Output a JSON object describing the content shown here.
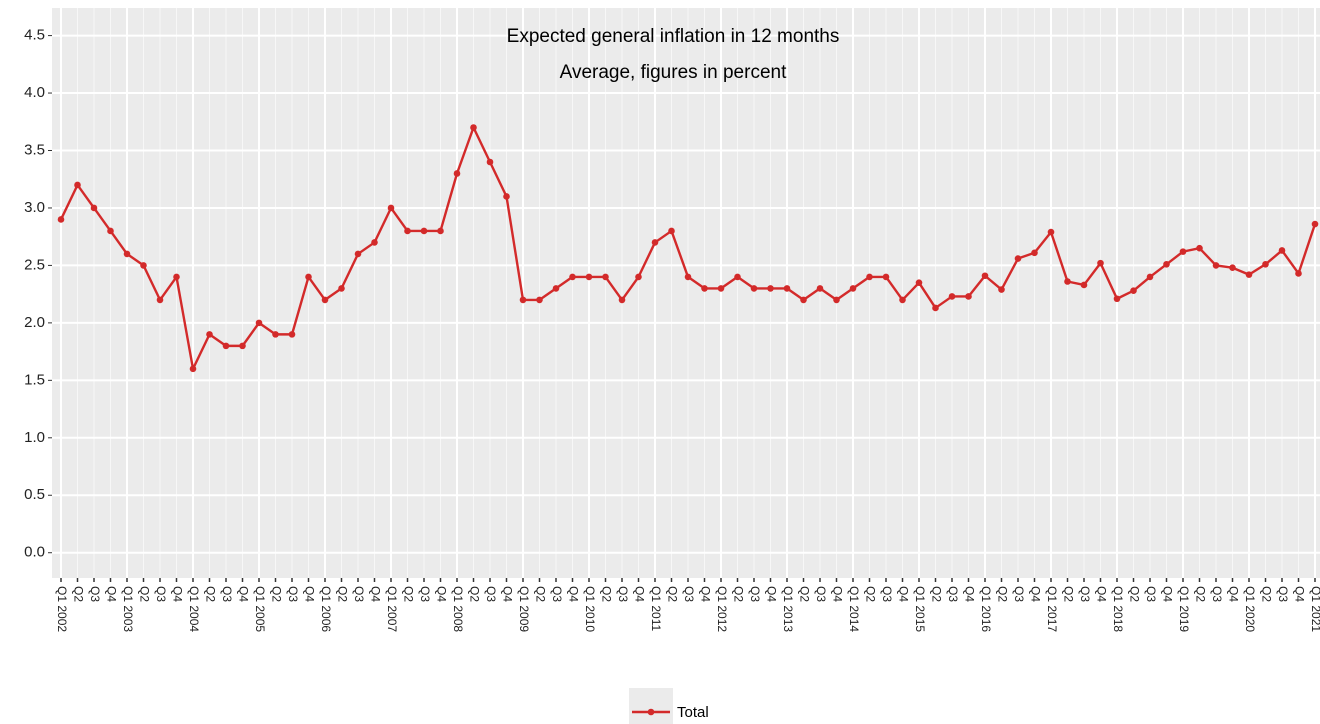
{
  "chart_data": {
    "type": "line",
    "title": "Expected general inflation in 12 months",
    "subtitle": "Average, figures in percent",
    "categories": [
      "Q1 2002",
      "Q2",
      "Q3",
      "Q4",
      "Q1 2003",
      "Q2",
      "Q3",
      "Q4",
      "Q1 2004",
      "Q2",
      "Q3",
      "Q4",
      "Q1 2005",
      "Q2",
      "Q3",
      "Q4",
      "Q1 2006",
      "Q2",
      "Q3",
      "Q4",
      "Q1 2007",
      "Q2",
      "Q3",
      "Q4",
      "Q1 2008",
      "Q2",
      "Q3",
      "Q4",
      "Q1 2009",
      "Q2",
      "Q3",
      "Q4",
      "Q1 2010",
      "Q2",
      "Q3",
      "Q4",
      "Q1 2011",
      "Q2",
      "Q3",
      "Q4",
      "Q1 2012",
      "Q2",
      "Q3",
      "Q4",
      "Q1 2013",
      "Q2",
      "Q3",
      "Q4",
      "Q1 2014",
      "Q2",
      "Q3",
      "Q4",
      "Q1 2015",
      "Q2",
      "Q3",
      "Q4",
      "Q1 2016",
      "Q2",
      "Q3",
      "Q4",
      "Q1 2017",
      "Q2",
      "Q3",
      "Q4",
      "Q1 2018",
      "Q2",
      "Q3",
      "Q4",
      "Q1 2019",
      "Q2",
      "Q3",
      "Q4",
      "Q1 2020",
      "Q2",
      "Q3",
      "Q4",
      "Q1 2021"
    ],
    "series": [
      {
        "name": "Total",
        "color": "#d32a2a",
        "values": [
          2.9,
          3.2,
          3.0,
          2.8,
          2.6,
          2.5,
          2.2,
          2.4,
          1.6,
          1.9,
          1.8,
          1.8,
          2.0,
          1.9,
          1.9,
          2.4,
          2.2,
          2.3,
          2.6,
          2.7,
          3.0,
          2.8,
          2.8,
          2.8,
          3.3,
          3.7,
          3.4,
          3.1,
          2.2,
          2.2,
          2.3,
          2.4,
          2.4,
          2.4,
          2.2,
          2.4,
          2.7,
          2.8,
          2.4,
          2.3,
          2.3,
          2.4,
          2.3,
          2.3,
          2.3,
          2.2,
          2.3,
          2.2,
          2.3,
          2.4,
          2.4,
          2.2,
          2.35,
          2.13,
          2.23,
          2.23,
          2.41,
          2.29,
          2.56,
          2.61,
          2.79,
          2.36,
          2.33,
          2.52,
          2.21,
          2.28,
          2.4,
          2.51,
          2.62,
          2.65,
          2.5,
          2.48,
          2.42,
          2.51,
          2.63,
          2.43,
          2.86
        ]
      }
    ],
    "ylim": [
      -0.22,
      4.74
    ],
    "yticks": [
      {
        "value": 0,
        "label": "0.0"
      },
      0.5,
      {
        "value": 1,
        "label": "1.0"
      },
      1.5,
      {
        "value": 2,
        "label": "2.0"
      },
      2.5,
      {
        "value": 3,
        "label": "3.0"
      },
      3.5,
      {
        "value": 4,
        "label": "4.0"
      },
      4.5
    ],
    "grid": true,
    "legend": "bottom"
  }
}
